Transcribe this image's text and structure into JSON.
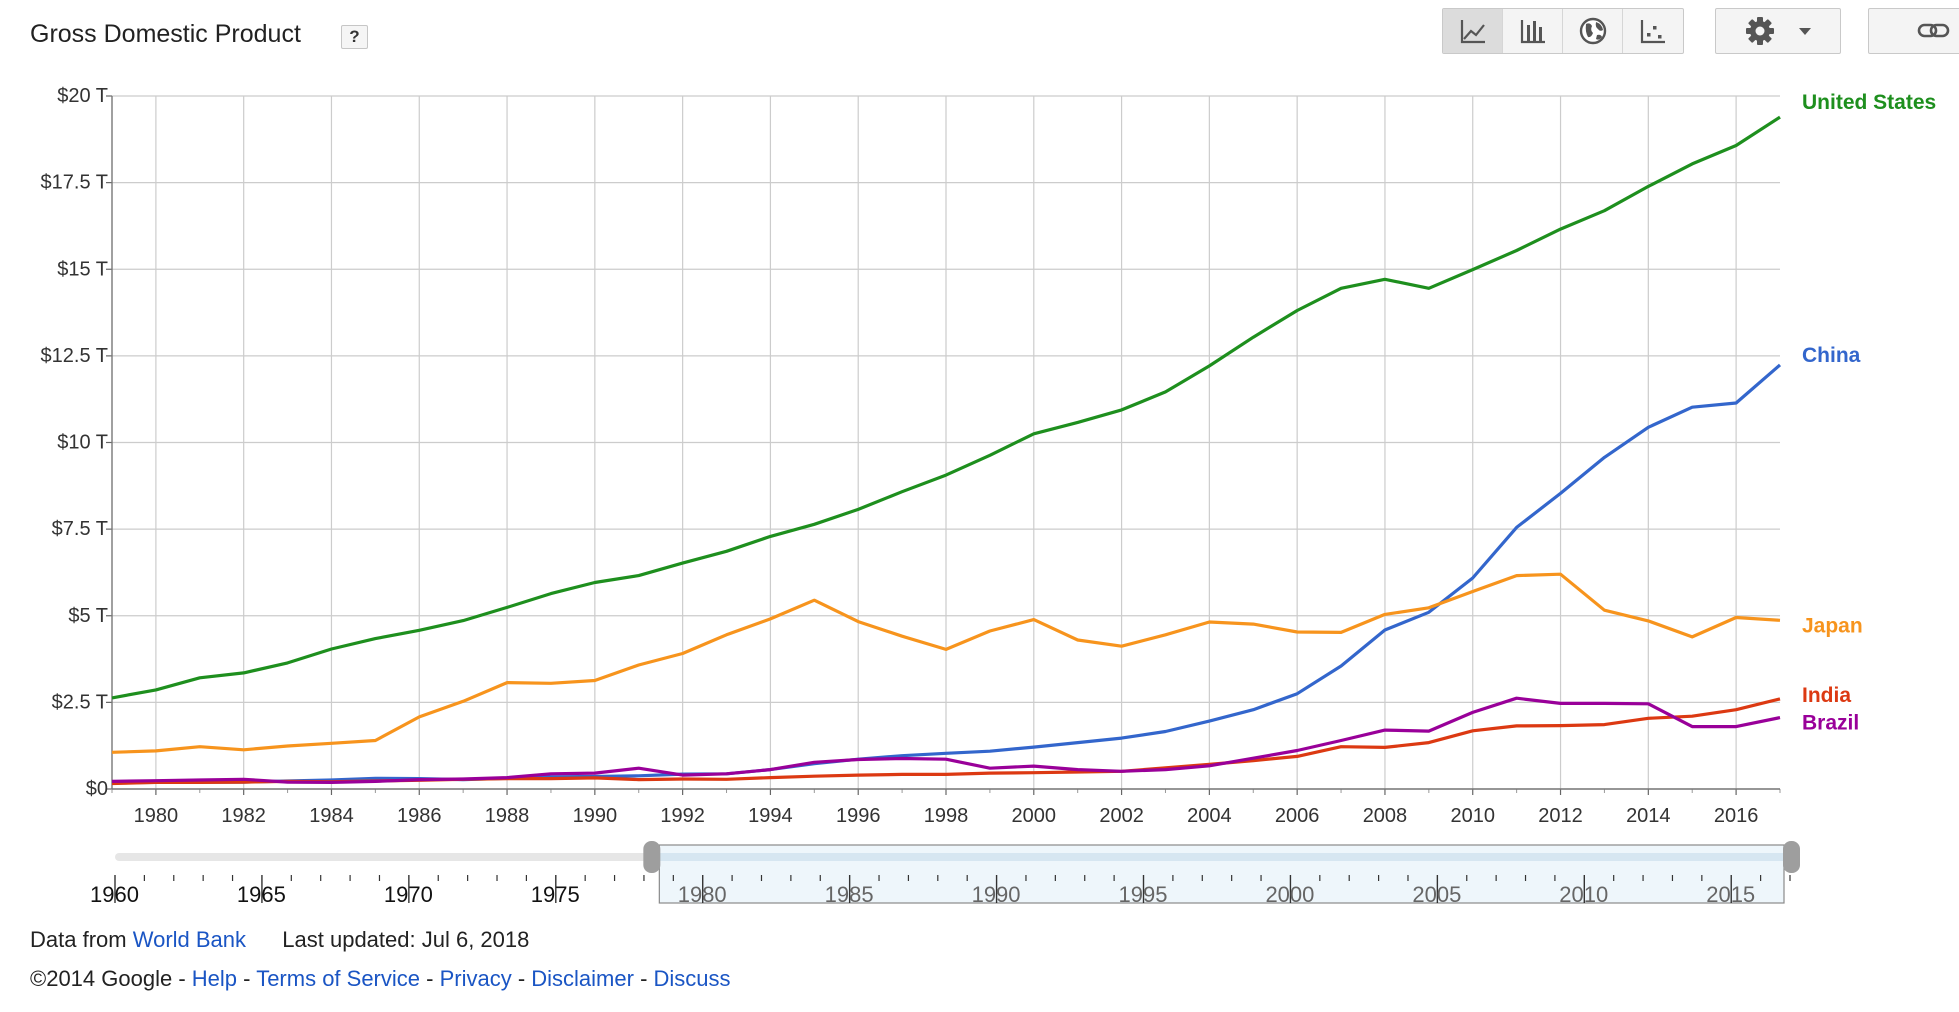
{
  "header": {
    "title": "Gross Domestic Product",
    "help_label": "?"
  },
  "toolbar": {
    "chart_types": [
      {
        "name": "line-chart-icon",
        "active": true
      },
      {
        "name": "bar-chart-icon",
        "active": false
      },
      {
        "name": "map-icon",
        "active": false
      },
      {
        "name": "scatter-chart-icon",
        "active": false
      }
    ],
    "settings_icon": "gear-icon",
    "link_icon": "link-icon"
  },
  "chart_data": {
    "type": "line",
    "title": "Gross Domestic Product",
    "x": [
      1979,
      1980,
      1981,
      1982,
      1983,
      1984,
      1985,
      1986,
      1987,
      1988,
      1989,
      1990,
      1991,
      1992,
      1993,
      1994,
      1995,
      1996,
      1997,
      1998,
      1999,
      2000,
      2001,
      2002,
      2003,
      2004,
      2005,
      2006,
      2007,
      2008,
      2009,
      2010,
      2011,
      2012,
      2013,
      2014,
      2015,
      2016,
      2017
    ],
    "xlim": [
      1979,
      2017
    ],
    "xticks": [
      "1980",
      "1982",
      "1984",
      "1986",
      "1988",
      "1990",
      "1992",
      "1994",
      "1996",
      "1998",
      "2000",
      "2002",
      "2004",
      "2006",
      "2008",
      "2010",
      "2012",
      "2014",
      "2016"
    ],
    "ylim": [
      0,
      20
    ],
    "yticks": [
      "$0",
      "$2.5 T",
      "$5 T",
      "$7.5 T",
      "$10 T",
      "$12.5 T",
      "$15 T",
      "$17.5 T",
      "$20 T"
    ],
    "grid": true,
    "legend": "right end of lines",
    "series": [
      {
        "name": "United States",
        "color": "#1e8f1e",
        "values": [
          2.63,
          2.86,
          3.21,
          3.35,
          3.64,
          4.04,
          4.34,
          4.58,
          4.86,
          5.24,
          5.64,
          5.96,
          6.16,
          6.52,
          6.86,
          7.29,
          7.64,
          8.07,
          8.58,
          9.06,
          9.63,
          10.25,
          10.58,
          10.94,
          11.46,
          12.21,
          13.04,
          13.81,
          14.45,
          14.71,
          14.45,
          14.99,
          15.54,
          16.16,
          16.69,
          17.39,
          18.04,
          18.57,
          19.39
        ]
      },
      {
        "name": "China",
        "color": "#3366cc",
        "values": [
          0.18,
          0.19,
          0.2,
          0.2,
          0.23,
          0.26,
          0.31,
          0.3,
          0.27,
          0.31,
          0.35,
          0.36,
          0.38,
          0.43,
          0.44,
          0.56,
          0.73,
          0.86,
          0.96,
          1.03,
          1.09,
          1.21,
          1.34,
          1.47,
          1.66,
          1.96,
          2.29,
          2.75,
          3.55,
          4.59,
          5.1,
          6.09,
          7.55,
          8.53,
          9.57,
          10.44,
          11.02,
          11.14,
          12.24
        ]
      },
      {
        "name": "Japan",
        "color": "#f7941d",
        "values": [
          1.06,
          1.1,
          1.22,
          1.13,
          1.24,
          1.32,
          1.4,
          2.08,
          2.53,
          3.07,
          3.05,
          3.13,
          3.58,
          3.91,
          4.45,
          4.91,
          5.45,
          4.83,
          4.41,
          4.03,
          4.56,
          4.89,
          4.3,
          4.12,
          4.45,
          4.82,
          4.76,
          4.53,
          4.52,
          5.04,
          5.23,
          5.7,
          6.16,
          6.2,
          5.16,
          4.85,
          4.39,
          4.95,
          4.87
        ]
      },
      {
        "name": "India",
        "color": "#dc3912",
        "values": [
          0.16,
          0.19,
          0.19,
          0.2,
          0.22,
          0.21,
          0.23,
          0.25,
          0.28,
          0.3,
          0.3,
          0.32,
          0.27,
          0.29,
          0.28,
          0.33,
          0.37,
          0.4,
          0.42,
          0.42,
          0.46,
          0.47,
          0.49,
          0.51,
          0.61,
          0.71,
          0.82,
          0.94,
          1.22,
          1.2,
          1.34,
          1.68,
          1.82,
          1.83,
          1.86,
          2.04,
          2.1,
          2.29,
          2.6
        ]
      },
      {
        "name": "Brazil",
        "color": "#990099",
        "values": [
          0.22,
          0.24,
          0.26,
          0.28,
          0.2,
          0.19,
          0.22,
          0.27,
          0.29,
          0.33,
          0.44,
          0.46,
          0.6,
          0.4,
          0.44,
          0.56,
          0.77,
          0.85,
          0.88,
          0.86,
          0.6,
          0.66,
          0.56,
          0.51,
          0.56,
          0.67,
          0.89,
          1.11,
          1.4,
          1.7,
          1.67,
          2.21,
          2.62,
          2.47,
          2.47,
          2.46,
          1.8,
          1.8,
          2.06
        ]
      }
    ]
  },
  "range_selector": {
    "labels": [
      "1960",
      "1965",
      "1970",
      "1975",
      "1980",
      "1985",
      "1990",
      "1995",
      "2000",
      "2005",
      "2010",
      "2015"
    ],
    "selected_range": [
      1979,
      2017
    ],
    "full_range": [
      1960,
      2017
    ]
  },
  "footer": {
    "data_from_label": "Data from",
    "data_source": "World Bank",
    "last_updated": "Last updated: Jul 6, 2018",
    "copyright": "©2014 Google",
    "links": [
      "Help",
      "Terms of Service",
      "Privacy",
      "Disclaimer",
      "Discuss"
    ],
    "separator": " - "
  }
}
